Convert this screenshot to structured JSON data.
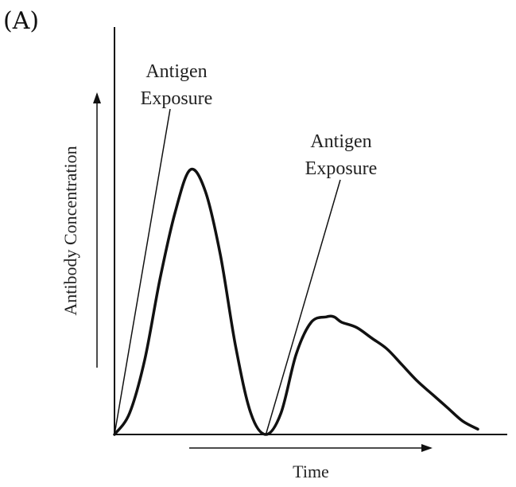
{
  "panel_label": "(A)",
  "chart_data": {
    "type": "line",
    "title": "",
    "xlabel": "Time",
    "ylabel": "Antibody Concentration",
    "xlim": [
      0,
      100
    ],
    "ylim": [
      0,
      100
    ],
    "grid": false,
    "legend": "none",
    "x": [
      0,
      4,
      8,
      12,
      16,
      20,
      24,
      28,
      32,
      36,
      40,
      44,
      48,
      52,
      56,
      58,
      60,
      64,
      68,
      72,
      76,
      80,
      84,
      88,
      92,
      96
    ],
    "series": [
      {
        "values": [
          0,
          8,
          28,
          58,
          83,
          99,
          91,
          67,
          33,
          8,
          0,
          8,
          30,
          42,
          44,
          44,
          42,
          40,
          36,
          32,
          26,
          20,
          15,
          10,
          5,
          2
        ]
      }
    ],
    "annotations": [
      {
        "label": "Antigen Exposure",
        "line1": "Antigen",
        "line2": "Exposure",
        "x": 0,
        "y": 0
      },
      {
        "label": "Antigen Exposure",
        "line1": "Antigen",
        "line2": "Exposure",
        "x": 40,
        "y": 0
      }
    ]
  },
  "colors": {
    "line": "#111111",
    "axis": "#111111",
    "text": "#222222"
  }
}
